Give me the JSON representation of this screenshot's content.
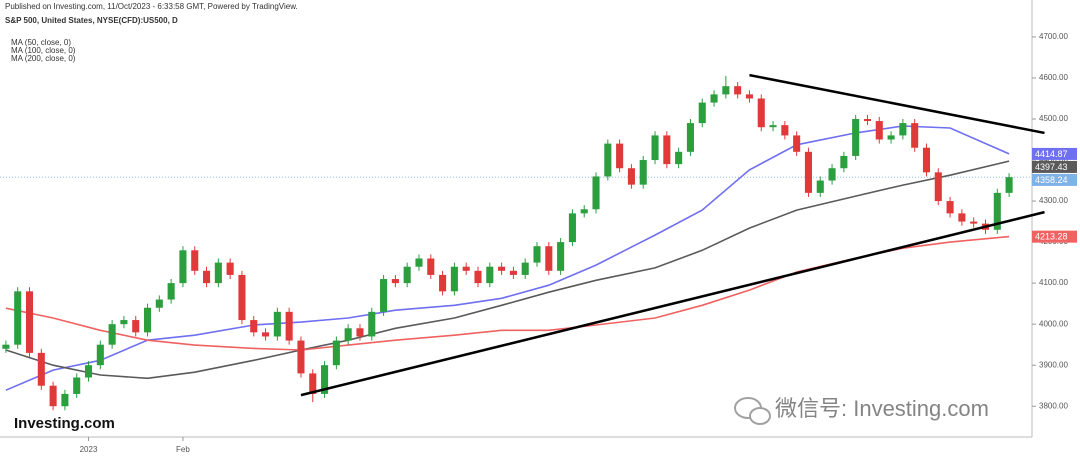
{
  "chart_data": {
    "type": "candlestick",
    "published": "Published on Investing.com, 11/Oct/2023 - 6:33:58 GMT, Powered by TradingView.",
    "title": "S&P 500, United States, NYSE(CFD):US500, D",
    "logo": "Investing.com",
    "watermark": "微信号: Investing.com",
    "xlim": [
      -0.5,
      85.5
    ],
    "xticks": [
      {
        "value": 7,
        "label": "2023"
      },
      {
        "value": 15,
        "label": "Feb"
      }
    ],
    "ylim": [
      3725,
      4790
    ],
    "yticks": [
      {
        "value": 3800,
        "label": "3800.00"
      },
      {
        "value": 3900,
        "label": "3900.00"
      },
      {
        "value": 4000,
        "label": "4000.00"
      },
      {
        "value": 4100,
        "label": "4100.00"
      },
      {
        "value": 4200,
        "label": "4200.00"
      },
      {
        "value": 4300,
        "label": "4300.00"
      },
      {
        "value": 4400,
        "label": "4400.00"
      },
      {
        "value": 4500,
        "label": "4500.00"
      },
      {
        "value": 4600,
        "label": "4600.00"
      },
      {
        "value": 4700,
        "label": "4700.00"
      }
    ],
    "up_color": "#2b9e3e",
    "down_color": "#e0393a",
    "price_line_color": "#7fb3e8",
    "open": [
      3940,
      3950,
      4080,
      3930,
      3850,
      3800,
      3830,
      3870,
      3900,
      3950,
      4000,
      4010,
      3980,
      4040,
      4060,
      4100,
      4180,
      4130,
      4100,
      4150,
      4120,
      4010,
      3980,
      3970,
      4030,
      3960,
      3880,
      3830,
      3900,
      3960,
      3990,
      3970,
      4030,
      4110,
      4100,
      4140,
      4160,
      4120,
      4080,
      4140,
      4130,
      4100,
      4140,
      4130,
      4120,
      4150,
      4190,
      4130,
      4200,
      4270,
      4280,
      4360,
      4440,
      4380,
      4340,
      4400,
      4460,
      4390,
      4420,
      4490,
      4540,
      4560,
      4580,
      4560,
      4550,
      4480,
      4485,
      4460,
      4420,
      4320,
      4350,
      4380,
      4410,
      4500,
      4495,
      4450,
      4460,
      4490,
      4430,
      4370,
      4300,
      4270,
      4250,
      4245,
      4230,
      4320
    ],
    "high": [
      3960,
      4090,
      4090,
      3940,
      3860,
      3840,
      3880,
      3910,
      3960,
      4010,
      4020,
      4020,
      4050,
      4070,
      4110,
      4190,
      4190,
      4140,
      4160,
      4160,
      4130,
      4020,
      3990,
      4040,
      4040,
      3970,
      3890,
      3910,
      3970,
      4000,
      4000,
      4040,
      4120,
      4120,
      4150,
      4170,
      4170,
      4130,
      4150,
      4150,
      4140,
      4150,
      4150,
      4140,
      4160,
      4200,
      4200,
      4210,
      4280,
      4290,
      4370,
      4450,
      4450,
      4390,
      4410,
      4470,
      4470,
      4430,
      4500,
      4550,
      4570,
      4605,
      4590,
      4570,
      4560,
      4495,
      4495,
      4470,
      4430,
      4360,
      4390,
      4420,
      4510,
      4510,
      4505,
      4470,
      4500,
      4500,
      4440,
      4380,
      4310,
      4280,
      4260,
      4255,
      4330,
      4368
    ],
    "low": [
      3930,
      3940,
      3920,
      3840,
      3790,
      3790,
      3820,
      3860,
      3890,
      3940,
      3990,
      3970,
      3970,
      4030,
      4050,
      4090,
      4120,
      4090,
      4090,
      4110,
      4000,
      3970,
      3960,
      3960,
      3950,
      3870,
      3810,
      3820,
      3890,
      3950,
      3960,
      3960,
      4020,
      4090,
      4090,
      4130,
      4110,
      4070,
      4070,
      4120,
      4090,
      4090,
      4120,
      4110,
      4110,
      4140,
      4120,
      4120,
      4190,
      4260,
      4270,
      4350,
      4370,
      4330,
      4330,
      4390,
      4380,
      4380,
      4410,
      4480,
      4530,
      4550,
      4550,
      4540,
      4470,
      4470,
      4450,
      4410,
      4310,
      4310,
      4340,
      4370,
      4400,
      4485,
      4440,
      4440,
      4450,
      4420,
      4360,
      4290,
      4260,
      4240,
      4235,
      4220,
      4220,
      4310
    ],
    "close": [
      3950,
      4080,
      3930,
      3850,
      3800,
      3830,
      3870,
      3900,
      3950,
      4000,
      4010,
      3980,
      4040,
      4060,
      4100,
      4180,
      4130,
      4100,
      4150,
      4120,
      4010,
      3980,
      3970,
      4030,
      3960,
      3880,
      3830,
      3900,
      3960,
      3990,
      3970,
      4030,
      4110,
      4100,
      4140,
      4160,
      4120,
      4080,
      4140,
      4130,
      4100,
      4140,
      4130,
      4120,
      4150,
      4190,
      4130,
      4200,
      4270,
      4280,
      4360,
      4440,
      4380,
      4340,
      4400,
      4460,
      4390,
      4420,
      4490,
      4540,
      4560,
      4580,
      4560,
      4550,
      4480,
      4485,
      4460,
      4420,
      4320,
      4350,
      4380,
      4410,
      4500,
      4495,
      4450,
      4460,
      4490,
      4430,
      4370,
      4300,
      4270,
      4250,
      4245,
      4230,
      4320,
      4358.24
    ],
    "series": [
      {
        "name": "MA (50, close, 0)",
        "color": "#6f6ff2",
        "x": [
          0,
          4,
          8,
          12,
          16,
          21,
          25,
          29,
          33,
          38,
          42,
          46,
          50,
          55,
          59,
          63,
          67,
          72,
          76,
          80,
          85
        ],
        "values": [
          3839,
          3888,
          3912,
          3961,
          3973,
          3998,
          4005,
          4015,
          4034,
          4046,
          4063,
          4095,
          4144,
          4217,
          4278,
          4376,
          4437,
          4466,
          4483,
          4478,
          4414.87
        ]
      },
      {
        "name": "MA (100, close, 0)",
        "color": "#5a5a5a",
        "x": [
          0,
          4,
          8,
          12,
          16,
          21,
          25,
          29,
          33,
          38,
          42,
          46,
          50,
          55,
          59,
          63,
          67,
          72,
          76,
          80,
          85
        ],
        "values": [
          3937,
          3900,
          3876,
          3868,
          3883,
          3912,
          3937,
          3961,
          3990,
          4015,
          4046,
          4078,
          4107,
          4137,
          4180,
          4234,
          4278,
          4312,
          4339,
          4363,
          4397.43
        ]
      },
      {
        "name": "MA (200, close, 0)",
        "color": "#f06262",
        "x": [
          0,
          4,
          8,
          12,
          16,
          21,
          25,
          29,
          33,
          38,
          42,
          46,
          50,
          55,
          59,
          63,
          67,
          72,
          76,
          80,
          85
        ],
        "values": [
          4039,
          4015,
          3985,
          3961,
          3949,
          3941,
          3937,
          3949,
          3961,
          3973,
          3985,
          3985,
          3998,
          4015,
          4046,
          4083,
          4127,
          4161,
          4185,
          4200,
          4213.28
        ]
      }
    ],
    "trendlines": [
      {
        "x": [
          25,
          88
        ],
        "values": [
          3827,
          4273
        ]
      },
      {
        "x": [
          63,
          88
        ],
        "values": [
          4607,
          4466
        ]
      }
    ]
  }
}
